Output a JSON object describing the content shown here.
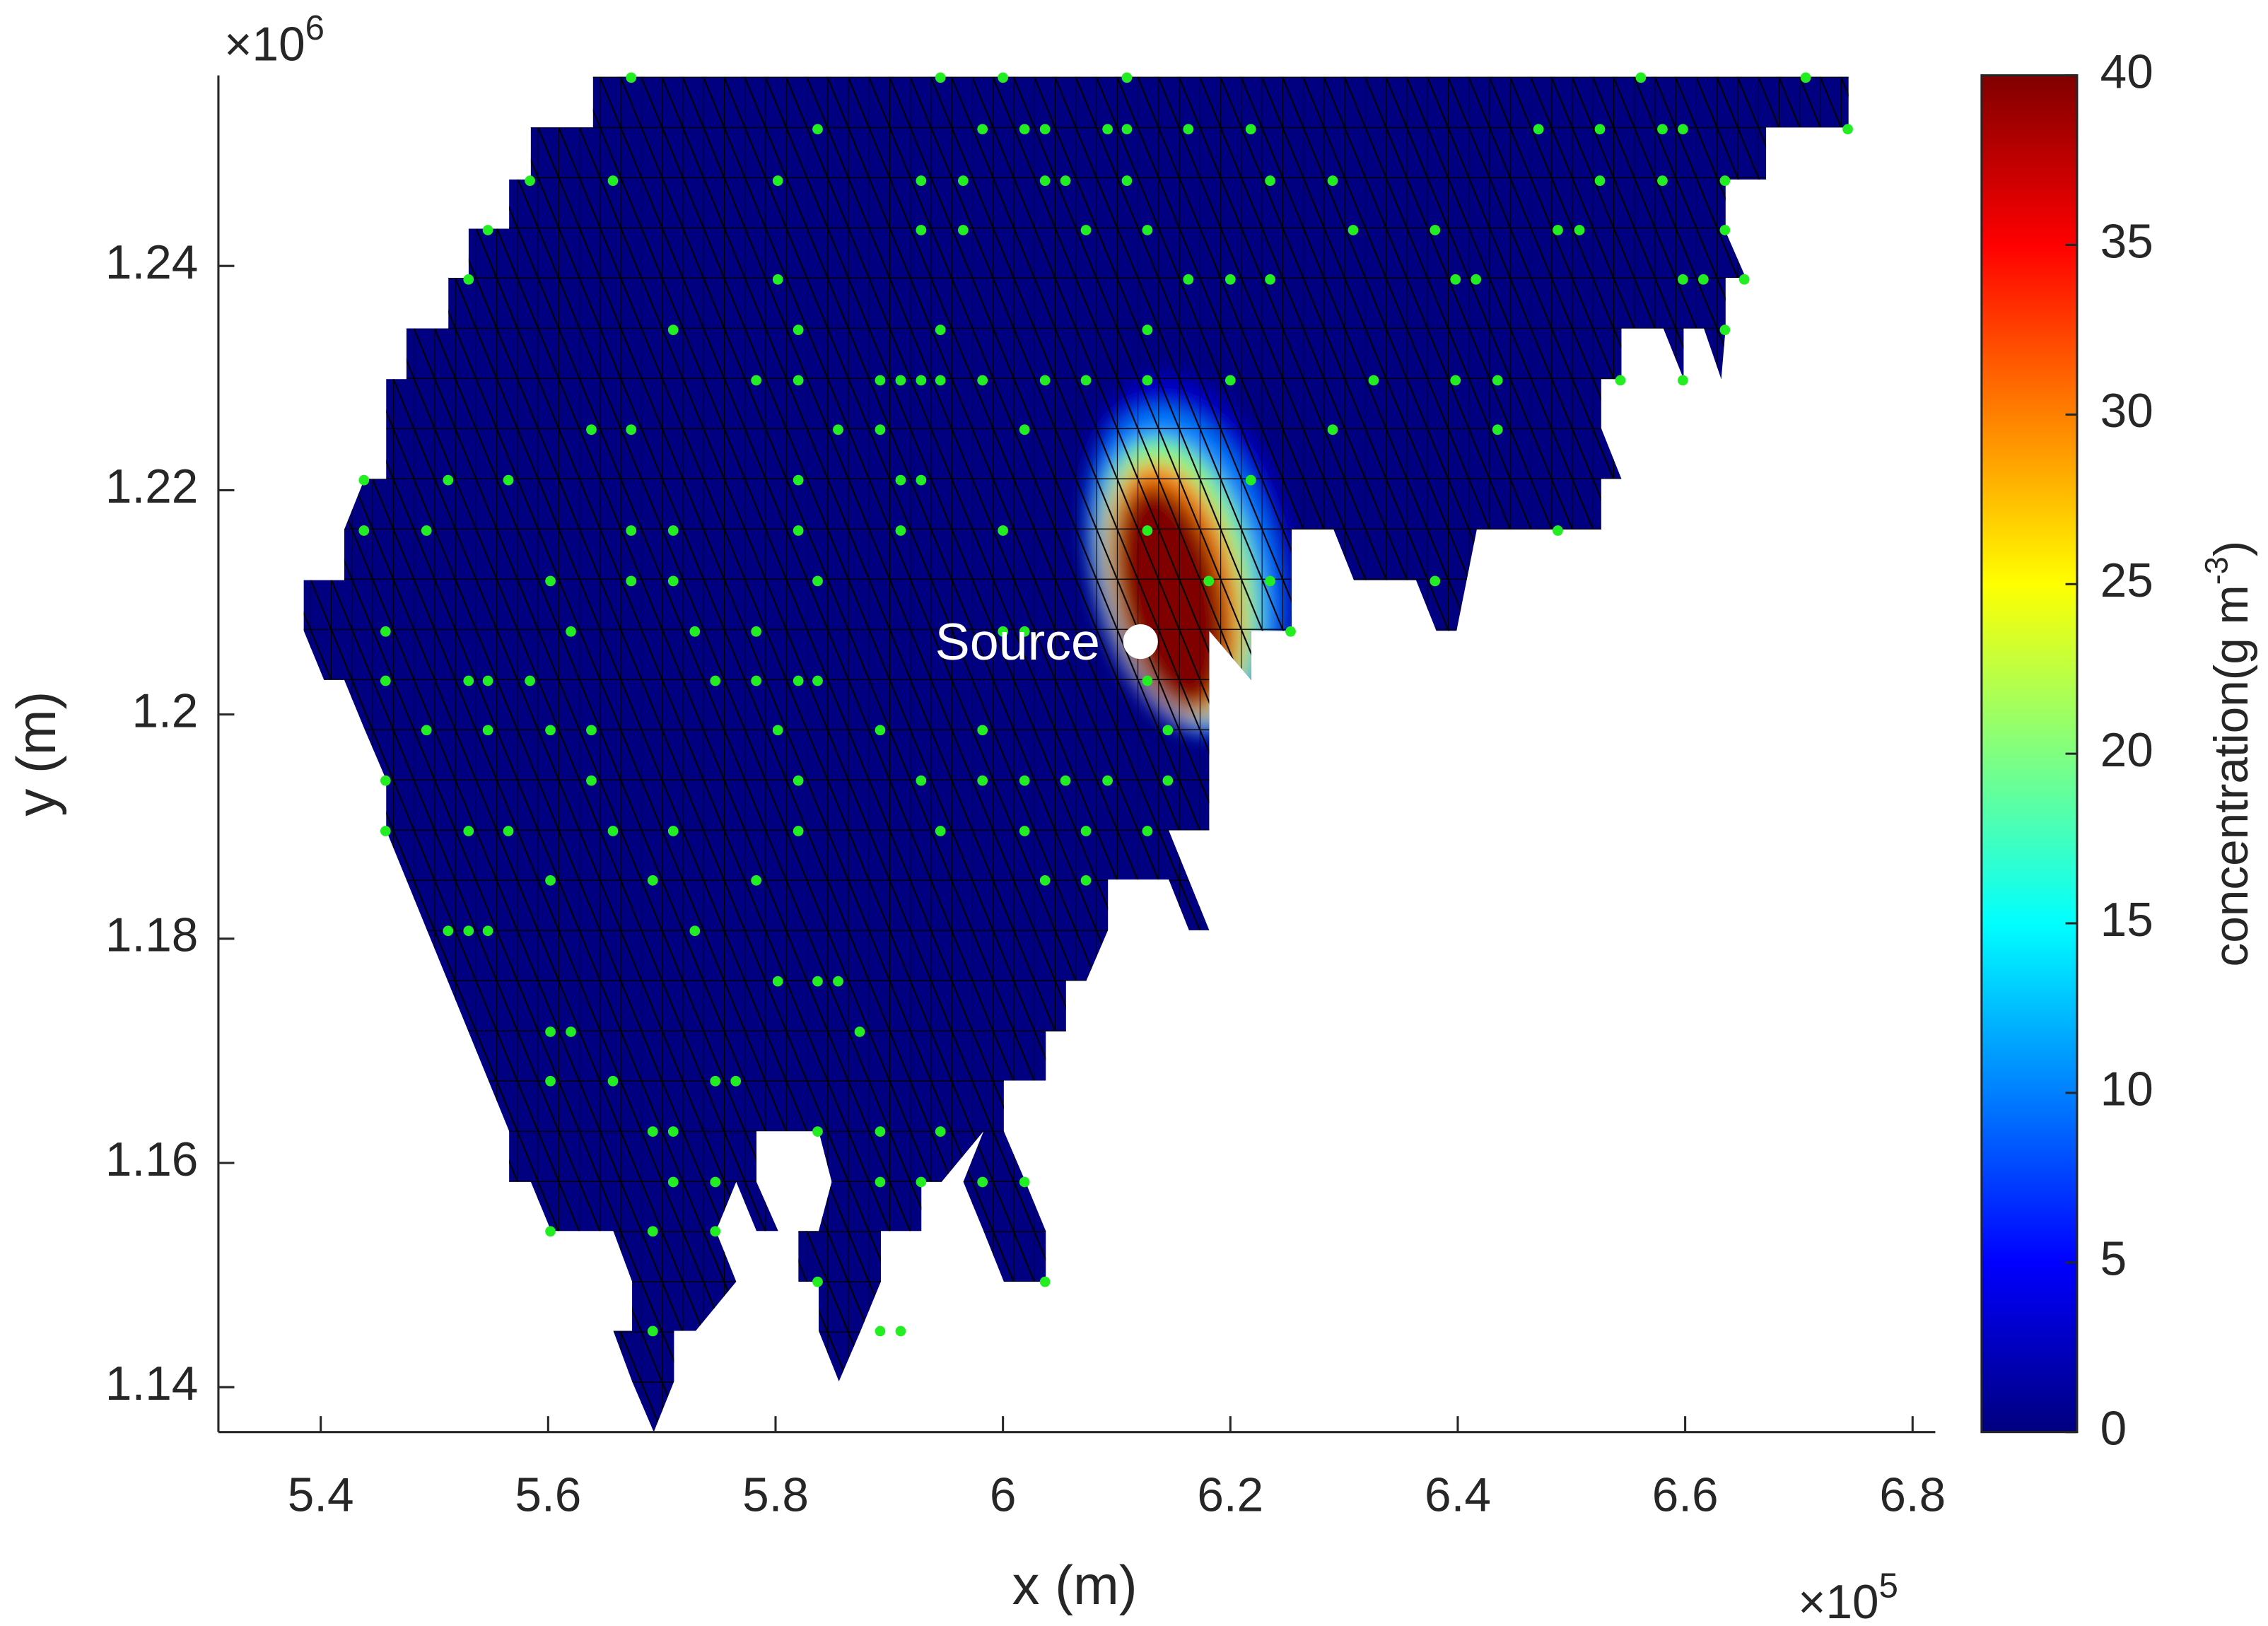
{
  "chart_data": {
    "type": "scatter",
    "xlabel": "x (m)",
    "ylabel": "y (m)",
    "x_exponent": {
      "base": "×10",
      "power": "5"
    },
    "y_exponent": {
      "base": "×10",
      "power": "6"
    },
    "xlim": [
      5.31,
      6.82
    ],
    "xticks": [
      5.4,
      5.6,
      5.8,
      6,
      6.2,
      6.4,
      6.6,
      6.8
    ],
    "ylim": [
      1.136,
      1.257
    ],
    "yticks": [
      1.14,
      1.16,
      1.18,
      1.2,
      1.22,
      1.24
    ],
    "field": {
      "colormap": "jet",
      "levels": [
        {
          "value": 3,
          "x": 6.165,
          "y": 1.214,
          "rx": 0.09,
          "ry": 0.0165
        },
        {
          "value": 10,
          "x": 6.16,
          "y": 1.213,
          "rx": 0.078,
          "ry": 0.0145
        },
        {
          "value": 20,
          "x": 6.155,
          "y": 1.212,
          "rx": 0.066,
          "ry": 0.0128
        },
        {
          "value": 30,
          "x": 6.151,
          "y": 1.2112,
          "rx": 0.056,
          "ry": 0.0115
        },
        {
          "value": 40,
          "x": 6.148,
          "y": 1.2105,
          "rx": 0.046,
          "ry": 0.0102
        }
      ]
    },
    "points": {
      "color": "#22ee22",
      "rows": [
        {
          "y": 1.2568,
          "x": [
            5.673,
            5.945,
            6.0,
            6.109,
            6.561,
            6.706
          ]
        },
        {
          "y": 1.2522,
          "x": [
            5.837,
            5.982,
            6.019,
            6.037,
            6.092,
            6.109,
            6.163,
            6.218,
            6.471,
            6.525,
            6.58,
            6.598,
            6.743
          ]
        },
        {
          "y": 1.2476,
          "x": [
            5.584,
            5.657,
            5.802,
            5.928,
            5.965,
            6.037,
            6.055,
            6.109,
            6.235,
            6.29,
            6.525,
            6.58,
            6.635
          ]
        },
        {
          "y": 1.2432,
          "x": [
            5.547,
            5.928,
            5.965,
            6.073,
            6.127,
            6.308,
            6.38,
            6.488,
            6.507,
            6.635
          ]
        },
        {
          "y": 1.2388,
          "x": [
            5.53,
            5.802,
            6.163,
            6.2,
            6.235,
            6.398,
            6.416,
            6.598,
            6.616,
            6.652
          ]
        },
        {
          "y": 1.2343,
          "x": [
            5.71,
            5.82,
            5.945,
            6.127,
            6.635
          ]
        },
        {
          "y": 1.2298,
          "x": [
            5.783,
            5.82,
            5.892,
            5.91,
            5.928,
            5.945,
            5.982,
            6.037,
            6.073,
            6.127,
            6.2,
            6.326,
            6.398,
            6.435,
            6.543,
            6.598
          ]
        },
        {
          "y": 1.2254,
          "x": [
            5.638,
            5.673,
            5.855,
            5.892,
            6.019,
            6.29,
            6.435
          ]
        },
        {
          "y": 1.2209,
          "x": [
            5.438,
            5.512,
            5.565,
            5.82,
            5.91,
            5.928,
            6.218
          ]
        },
        {
          "y": 1.2164,
          "x": [
            5.438,
            5.493,
            5.673,
            5.71,
            5.82,
            5.91,
            6.0,
            6.127,
            6.488
          ]
        },
        {
          "y": 1.2119,
          "x": [
            5.602,
            5.673,
            5.71,
            5.837,
            6.181,
            6.235,
            6.38
          ]
        },
        {
          "y": 1.2074,
          "x": [
            5.457,
            5.62,
            5.729,
            5.783,
            6.0,
            6.019,
            6.127,
            6.253
          ]
        },
        {
          "y": 1.203,
          "x": [
            5.457,
            5.53,
            5.547,
            5.584,
            5.747,
            5.783,
            5.82,
            5.837,
            6.127
          ]
        },
        {
          "y": 1.1986,
          "x": [
            5.493,
            5.547,
            5.602,
            5.638,
            5.802,
            5.892,
            5.982,
            6.145
          ]
        },
        {
          "y": 1.1941,
          "x": [
            5.457,
            5.638,
            5.82,
            5.928,
            5.982,
            6.019,
            6.055,
            6.092,
            6.145
          ]
        },
        {
          "y": 1.1896,
          "x": [
            5.457,
            5.53,
            5.565,
            5.657,
            5.71,
            5.82,
            5.945,
            6.019,
            6.073,
            6.127
          ]
        },
        {
          "y": 1.1852,
          "x": [
            5.602,
            5.692,
            5.783,
            6.037,
            6.073
          ]
        },
        {
          "y": 1.1807,
          "x": [
            5.512,
            5.53,
            5.547,
            5.729
          ]
        },
        {
          "y": 1.1762,
          "x": [
            5.802,
            5.837,
            5.855
          ]
        },
        {
          "y": 1.1717,
          "x": [
            5.602,
            5.62,
            5.874
          ]
        },
        {
          "y": 1.1673,
          "x": [
            5.602,
            5.657,
            5.747,
            5.765
          ]
        },
        {
          "y": 1.1628,
          "x": [
            5.692,
            5.71,
            5.837,
            5.892,
            5.945
          ]
        },
        {
          "y": 1.1583,
          "x": [
            5.71,
            5.747,
            5.892,
            5.928,
            5.982,
            6.019
          ]
        },
        {
          "y": 1.1539,
          "x": [
            5.602,
            5.692,
            5.747
          ]
        },
        {
          "y": 1.1494,
          "x": [
            5.837,
            6.037
          ]
        },
        {
          "y": 1.145,
          "x": [
            5.692,
            5.892,
            5.91
          ]
        }
      ]
    },
    "source": {
      "label": "Source",
      "x": 6.121,
      "y": 1.2065,
      "color": "#ffffff"
    },
    "colorbar": {
      "clim": [
        0,
        40
      ],
      "ticks": [
        0,
        5,
        10,
        15,
        20,
        25,
        30,
        35,
        40
      ],
      "label": {
        "text": "concentration(g m",
        "sup": "-3",
        "end": ")"
      }
    }
  }
}
